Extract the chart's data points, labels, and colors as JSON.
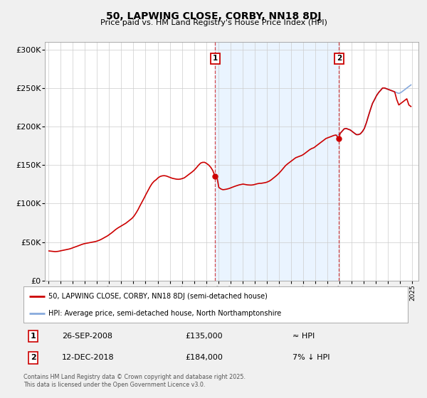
{
  "title": "50, LAPWING CLOSE, CORBY, NN18 8DJ",
  "subtitle": "Price paid vs. HM Land Registry's House Price Index (HPI)",
  "ylim": [
    0,
    310000
  ],
  "yticks": [
    0,
    50000,
    100000,
    150000,
    200000,
    250000,
    300000
  ],
  "ytick_labels": [
    "£0",
    "£50K",
    "£100K",
    "£150K",
    "£200K",
    "£250K",
    "£300K"
  ],
  "xlim_start": 1994.7,
  "xlim_end": 2025.5,
  "xtick_years": [
    1995,
    1996,
    1997,
    1998,
    1999,
    2000,
    2001,
    2002,
    2003,
    2004,
    2005,
    2006,
    2007,
    2008,
    2009,
    2010,
    2011,
    2012,
    2013,
    2014,
    2015,
    2016,
    2017,
    2018,
    2019,
    2020,
    2021,
    2022,
    2023,
    2024,
    2025
  ],
  "sale1_date": 2008.74,
  "sale1_label": "26-SEP-2008",
  "sale1_price": 135000,
  "sale1_price_str": "£135,000",
  "sale1_hpi_note": "≈ HPI",
  "sale2_date": 2018.95,
  "sale2_label": "12-DEC-2018",
  "sale2_price": 184000,
  "sale2_price_str": "£184,000",
  "sale2_hpi_note": "7% ↓ HPI",
  "red_line_color": "#cc0000",
  "blue_line_color": "#88aadd",
  "vline_color": "#cc0000",
  "shade_color": "#ddeeff",
  "bg_color": "#f0f0f0",
  "plot_bg_color": "#ffffff",
  "grid_color": "#cccccc",
  "legend_label_red": "50, LAPWING CLOSE, CORBY, NN18 8DJ (semi-detached house)",
  "legend_label_blue": "HPI: Average price, semi-detached house, North Northamptonshire",
  "footnote": "Contains HM Land Registry data © Crown copyright and database right 2025.\nThis data is licensed under the Open Government Licence v3.0.",
  "hpi_years": [
    1995.04,
    1995.21,
    1995.38,
    1995.54,
    1995.71,
    1995.88,
    1996.04,
    1996.21,
    1996.38,
    1996.54,
    1996.71,
    1996.88,
    1997.04,
    1997.21,
    1997.38,
    1997.54,
    1997.71,
    1997.88,
    1998.04,
    1998.21,
    1998.38,
    1998.54,
    1998.71,
    1998.88,
    1999.04,
    1999.21,
    1999.38,
    1999.54,
    1999.71,
    1999.88,
    2000.04,
    2000.21,
    2000.38,
    2000.54,
    2000.71,
    2000.88,
    2001.04,
    2001.21,
    2001.38,
    2001.54,
    2001.71,
    2001.88,
    2002.04,
    2002.21,
    2002.38,
    2002.54,
    2002.71,
    2002.88,
    2003.04,
    2003.21,
    2003.38,
    2003.54,
    2003.71,
    2003.88,
    2004.04,
    2004.21,
    2004.38,
    2004.54,
    2004.71,
    2004.88,
    2005.04,
    2005.21,
    2005.38,
    2005.54,
    2005.71,
    2005.88,
    2006.04,
    2006.21,
    2006.38,
    2006.54,
    2006.71,
    2006.88,
    2007.04,
    2007.21,
    2007.38,
    2007.54,
    2007.71,
    2007.88,
    2008.04,
    2008.21,
    2008.38,
    2008.54,
    2008.71,
    2008.88,
    2009.04,
    2009.21,
    2009.38,
    2009.54,
    2009.71,
    2009.88,
    2010.04,
    2010.21,
    2010.38,
    2010.54,
    2010.71,
    2010.88,
    2011.04,
    2011.21,
    2011.38,
    2011.54,
    2011.71,
    2011.88,
    2012.04,
    2012.21,
    2012.38,
    2012.54,
    2012.71,
    2012.88,
    2013.04,
    2013.21,
    2013.38,
    2013.54,
    2013.71,
    2013.88,
    2014.04,
    2014.21,
    2014.38,
    2014.54,
    2014.71,
    2014.88,
    2015.04,
    2015.21,
    2015.38,
    2015.54,
    2015.71,
    2015.88,
    2016.04,
    2016.21,
    2016.38,
    2016.54,
    2016.71,
    2016.88,
    2017.04,
    2017.21,
    2017.38,
    2017.54,
    2017.71,
    2017.88,
    2018.04,
    2018.21,
    2018.38,
    2018.54,
    2018.71,
    2018.88,
    2019.04,
    2019.21,
    2019.38,
    2019.54,
    2019.71,
    2019.88,
    2020.04,
    2020.21,
    2020.38,
    2020.54,
    2020.71,
    2020.88,
    2021.04,
    2021.21,
    2021.38,
    2021.54,
    2021.71,
    2021.88,
    2022.04,
    2022.21,
    2022.38,
    2022.54,
    2022.71,
    2022.88,
    2023.04,
    2023.21,
    2023.38,
    2023.54,
    2023.71,
    2023.88,
    2024.04,
    2024.21,
    2024.38,
    2024.54,
    2024.71,
    2024.88
  ],
  "hpi_values": [
    38500,
    38200,
    37800,
    37600,
    37800,
    38200,
    38800,
    39300,
    39900,
    40400,
    41000,
    41800,
    42800,
    43700,
    44700,
    45700,
    46700,
    47600,
    48200,
    48700,
    49200,
    49700,
    50200,
    50700,
    51500,
    52500,
    53800,
    55200,
    56800,
    58200,
    60000,
    62000,
    64200,
    66300,
    68200,
    69800,
    71300,
    72800,
    74500,
    76500,
    78500,
    80700,
    83500,
    87500,
    92000,
    97000,
    102000,
    107000,
    112000,
    117000,
    122000,
    126000,
    129000,
    131000,
    133500,
    135200,
    136000,
    136200,
    135800,
    134800,
    133800,
    132800,
    132200,
    131700,
    131500,
    131800,
    132500,
    133500,
    135500,
    137500,
    139500,
    141500,
    143800,
    146800,
    150000,
    152500,
    153500,
    153500,
    152000,
    150000,
    147000,
    143000,
    139000,
    135000,
    121000,
    119000,
    118000,
    118300,
    118800,
    119500,
    120500,
    121500,
    122500,
    123300,
    124200,
    124800,
    125300,
    124800,
    124300,
    124100,
    124000,
    124300,
    125000,
    125700,
    126200,
    126300,
    126700,
    127200,
    128000,
    129200,
    131000,
    133000,
    135200,
    137500,
    140000,
    143000,
    146200,
    149200,
    151500,
    153500,
    155500,
    157500,
    159500,
    160500,
    161500,
    162500,
    164000,
    166000,
    168000,
    170000,
    171500,
    172500,
    174500,
    176500,
    178500,
    180500,
    182500,
    184500,
    185500,
    186500,
    187500,
    188500,
    189000,
    189000,
    191000,
    194000,
    197000,
    197500,
    196500,
    195500,
    193500,
    191500,
    189500,
    189500,
    190500,
    193500,
    197500,
    205000,
    214000,
    222000,
    230000,
    235000,
    240000,
    244000,
    247000,
    250000,
    250000,
    249000,
    248000,
    247000,
    246000,
    245000,
    244000,
    243000,
    244000,
    246000,
    248000,
    250000,
    252000,
    254000
  ],
  "red_years": [
    1995.04,
    1995.21,
    1995.38,
    1995.54,
    1995.71,
    1995.88,
    1996.04,
    1996.21,
    1996.38,
    1996.54,
    1996.71,
    1996.88,
    1997.04,
    1997.21,
    1997.38,
    1997.54,
    1997.71,
    1997.88,
    1998.04,
    1998.21,
    1998.38,
    1998.54,
    1998.71,
    1998.88,
    1999.04,
    1999.21,
    1999.38,
    1999.54,
    1999.71,
    1999.88,
    2000.04,
    2000.21,
    2000.38,
    2000.54,
    2000.71,
    2000.88,
    2001.04,
    2001.21,
    2001.38,
    2001.54,
    2001.71,
    2001.88,
    2002.04,
    2002.21,
    2002.38,
    2002.54,
    2002.71,
    2002.88,
    2003.04,
    2003.21,
    2003.38,
    2003.54,
    2003.71,
    2003.88,
    2004.04,
    2004.21,
    2004.38,
    2004.54,
    2004.71,
    2004.88,
    2005.04,
    2005.21,
    2005.38,
    2005.54,
    2005.71,
    2005.88,
    2006.04,
    2006.21,
    2006.38,
    2006.54,
    2006.71,
    2006.88,
    2007.04,
    2007.21,
    2007.38,
    2007.54,
    2007.71,
    2007.88,
    2008.04,
    2008.21,
    2008.38,
    2008.54,
    2008.74,
    2008.88,
    2009.04,
    2009.21,
    2009.38,
    2009.54,
    2009.71,
    2009.88,
    2010.04,
    2010.21,
    2010.38,
    2010.54,
    2010.71,
    2010.88,
    2011.04,
    2011.21,
    2011.38,
    2011.54,
    2011.71,
    2011.88,
    2012.04,
    2012.21,
    2012.38,
    2012.54,
    2012.71,
    2012.88,
    2013.04,
    2013.21,
    2013.38,
    2013.54,
    2013.71,
    2013.88,
    2014.04,
    2014.21,
    2014.38,
    2014.54,
    2014.71,
    2014.88,
    2015.04,
    2015.21,
    2015.38,
    2015.54,
    2015.71,
    2015.88,
    2016.04,
    2016.21,
    2016.38,
    2016.54,
    2016.71,
    2016.88,
    2017.04,
    2017.21,
    2017.38,
    2017.54,
    2017.71,
    2017.88,
    2018.04,
    2018.21,
    2018.38,
    2018.54,
    2018.71,
    2018.95,
    2019.04,
    2019.21,
    2019.38,
    2019.54,
    2019.71,
    2019.88,
    2020.04,
    2020.21,
    2020.38,
    2020.54,
    2020.71,
    2020.88,
    2021.04,
    2021.21,
    2021.38,
    2021.54,
    2021.71,
    2021.88,
    2022.04,
    2022.21,
    2022.38,
    2022.54,
    2022.71,
    2022.88,
    2023.04,
    2023.21,
    2023.38,
    2023.54,
    2023.71,
    2023.88,
    2024.04,
    2024.21,
    2024.38,
    2024.54,
    2024.71,
    2024.88
  ],
  "red_values": [
    38500,
    38200,
    37800,
    37600,
    37800,
    38200,
    38800,
    39300,
    39900,
    40400,
    41000,
    41800,
    42800,
    43700,
    44700,
    45700,
    46700,
    47600,
    48200,
    48700,
    49200,
    49700,
    50200,
    50700,
    51500,
    52500,
    53800,
    55200,
    56800,
    58200,
    60000,
    62000,
    64200,
    66300,
    68200,
    69800,
    71300,
    72800,
    74500,
    76500,
    78500,
    80700,
    83500,
    87500,
    92000,
    97000,
    102000,
    107000,
    112000,
    117000,
    122000,
    126000,
    129000,
    131000,
    133500,
    135200,
    136000,
    136200,
    135800,
    134800,
    133800,
    132800,
    132200,
    131700,
    131500,
    131800,
    132500,
    133500,
    135500,
    137500,
    139500,
    141500,
    143800,
    146800,
    150000,
    152500,
    153500,
    153500,
    152000,
    150000,
    147000,
    143000,
    135000,
    135000,
    121000,
    119000,
    118000,
    118300,
    118800,
    119500,
    120500,
    121500,
    122500,
    123300,
    124200,
    124800,
    125300,
    124800,
    124300,
    124100,
    124000,
    124300,
    125000,
    125700,
    126200,
    126300,
    126700,
    127200,
    128000,
    129200,
    131000,
    133000,
    135200,
    137500,
    140000,
    143000,
    146200,
    149200,
    151500,
    153500,
    155500,
    157500,
    159500,
    160500,
    161500,
    162500,
    164000,
    166000,
    168000,
    170000,
    171500,
    172500,
    174500,
    176500,
    178500,
    180500,
    182500,
    184500,
    185500,
    186500,
    187500,
    188500,
    189000,
    184000,
    191000,
    194000,
    197000,
    197500,
    196500,
    195500,
    193500,
    191500,
    189500,
    189500,
    190500,
    193500,
    197500,
    205000,
    214000,
    222000,
    230000,
    235000,
    240000,
    244000,
    247000,
    250000,
    250000,
    249000,
    248000,
    247000,
    246000,
    245000,
    235000,
    228000,
    230000,
    232000,
    234000,
    236000,
    228000,
    226000
  ]
}
